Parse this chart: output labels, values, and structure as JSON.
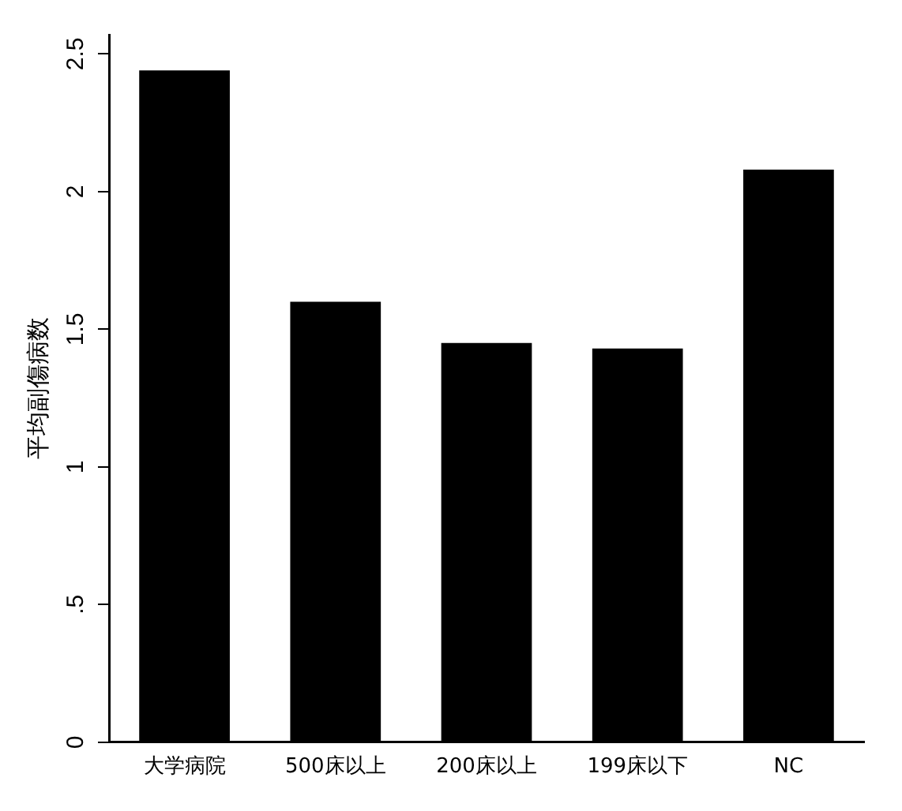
{
  "chart_data": {
    "type": "bar",
    "ylabel": "平均副傷病数",
    "categories": [
      "大学病院",
      "500床以上",
      "200床以上",
      "199床以下",
      "NC"
    ],
    "values": [
      2.44,
      1.6,
      1.45,
      1.43,
      2.08
    ],
    "color": "#000000",
    "ylim": [
      0,
      2.57
    ],
    "yticks": [
      {
        "value": 0,
        "label": "0"
      },
      {
        "value": 0.5,
        "label": ".5"
      },
      {
        "value": 1,
        "label": "1"
      },
      {
        "value": 1.5,
        "label": "1.5"
      },
      {
        "value": 2,
        "label": "2"
      },
      {
        "value": 2.5,
        "label": "2.5"
      }
    ],
    "grid": false,
    "legend": false
  }
}
